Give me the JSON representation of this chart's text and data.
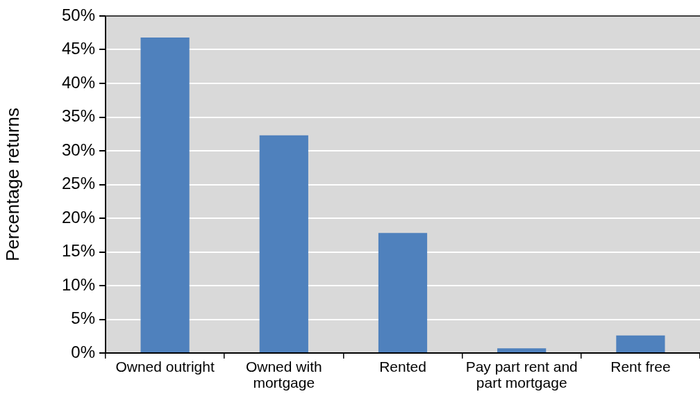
{
  "chart_data": {
    "type": "bar",
    "ylabel": "Percentage returns",
    "categories": [
      "Owned outright",
      "Owned with mortgage",
      "Rented",
      "Pay part rent and part mortgage",
      "Rent free"
    ],
    "values": [
      46.8,
      32.3,
      17.8,
      0.7,
      2.6
    ],
    "color": "#4f81bd",
    "ylim": [
      0,
      50
    ],
    "yticks": [
      {
        "value": 0,
        "label": "0%"
      },
      {
        "value": 5,
        "label": "5%"
      },
      {
        "value": 10,
        "label": "10%"
      },
      {
        "value": 15,
        "label": "15%"
      },
      {
        "value": 20,
        "label": "20%"
      },
      {
        "value": 25,
        "label": "25%"
      },
      {
        "value": 30,
        "label": "30%"
      },
      {
        "value": 35,
        "label": "35%"
      },
      {
        "value": 40,
        "label": "40%"
      },
      {
        "value": 45,
        "label": "45%"
      },
      {
        "value": 50,
        "label": "50%"
      }
    ],
    "grid": "y",
    "legend": false
  }
}
